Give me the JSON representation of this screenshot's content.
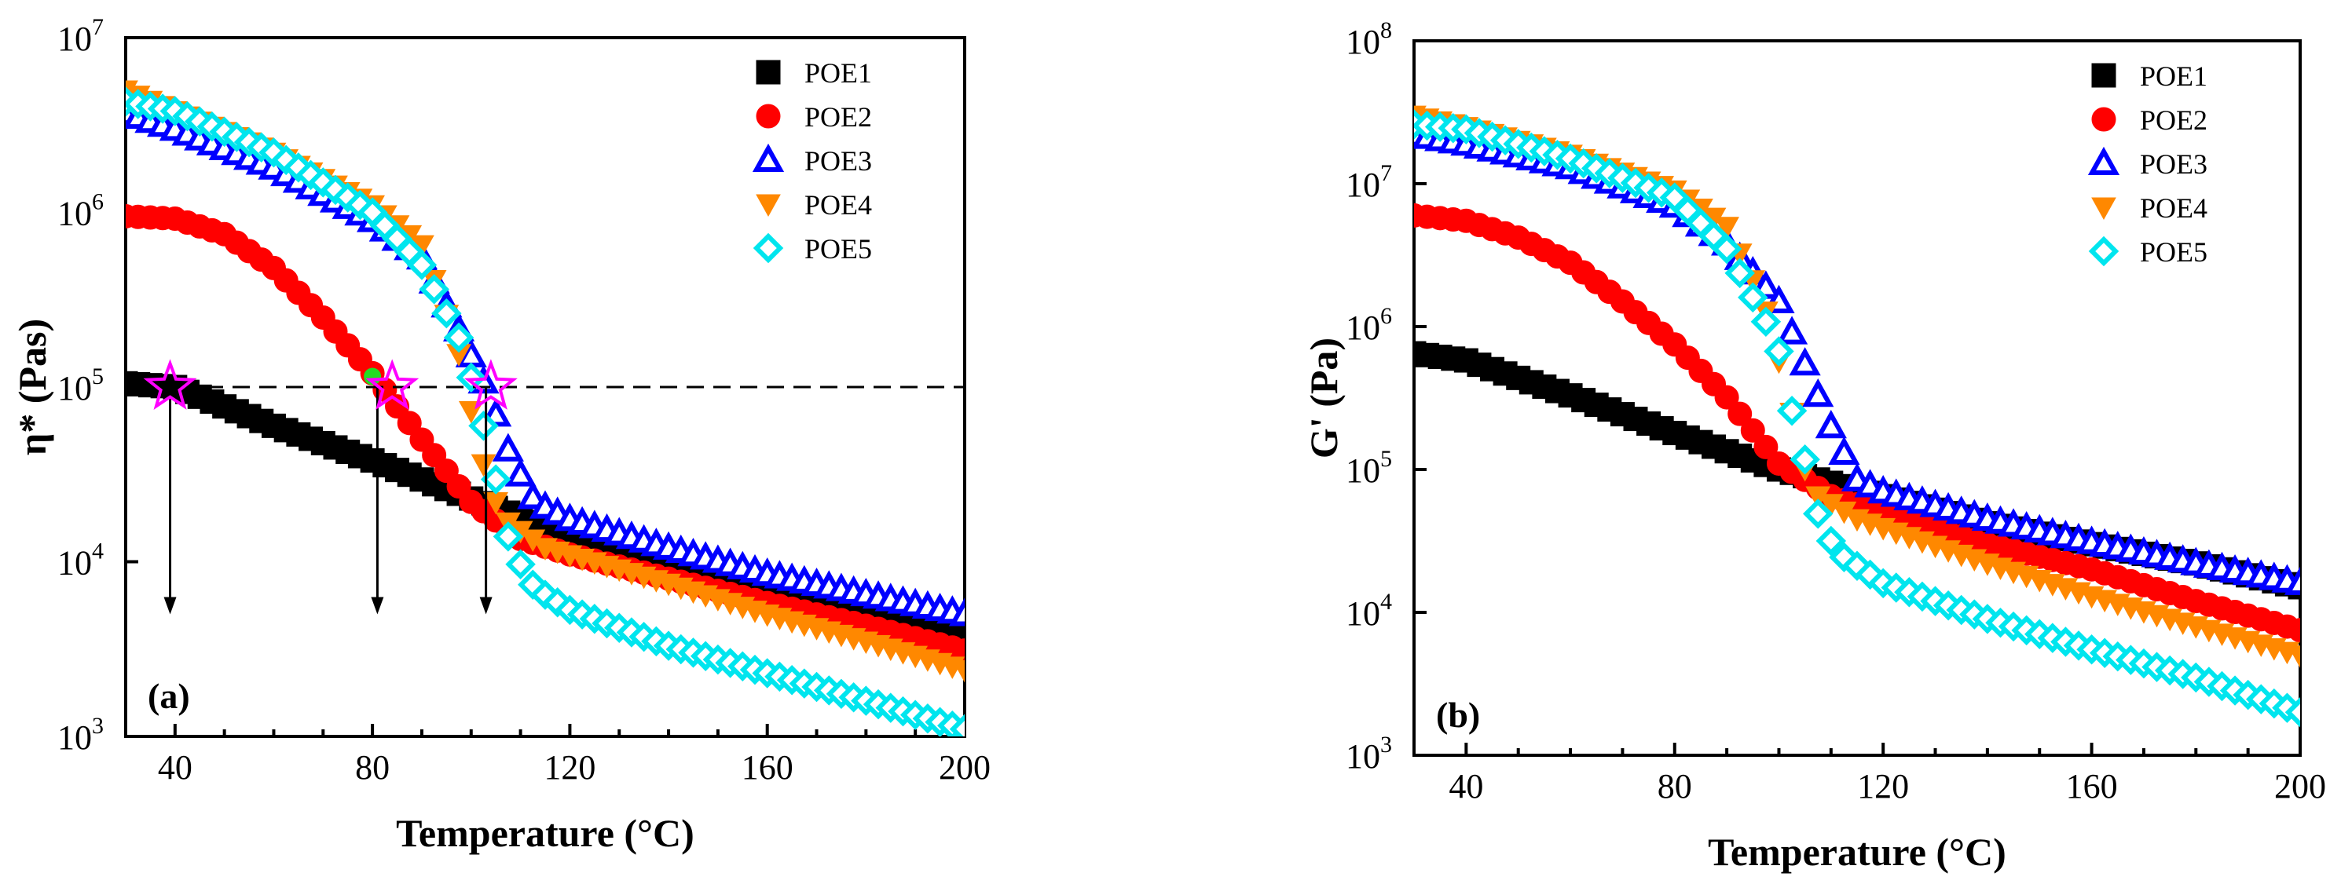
{
  "chart_data": [
    {
      "type": "scatter",
      "panel_label": "(a)",
      "xlabel": "Temperature (°C)",
      "ylabel": "η* (Pas)",
      "xlim": [
        30,
        200
      ],
      "ylog_exp_range": [
        3,
        7
      ],
      "x_ticks": [
        "40",
        "80",
        "120",
        "160",
        "200"
      ],
      "y_tick_exponents": [
        "3",
        "4",
        "5",
        "6",
        "7"
      ],
      "legend_position": "top-right",
      "reference_line": {
        "y": 100000,
        "style": "dashed"
      },
      "annotations": {
        "arrows_from_y": 100000,
        "arrows_to_y": 5000,
        "arrow_x": [
          39,
          81,
          103
        ],
        "stars": [
          [
            39,
            100000
          ],
          [
            84,
            100000
          ],
          [
            104,
            100000
          ]
        ],
        "green_dot": [
          80,
          115000
        ]
      },
      "series": [
        {
          "name": "POE1",
          "marker": "square",
          "color": "#000000",
          "filled": true,
          "points": [
            [
              30,
              105000
            ],
            [
              40,
              100000
            ],
            [
              60,
              60000
            ],
            [
              80,
              38000
            ],
            [
              100,
              23000
            ],
            [
              120,
              14000
            ],
            [
              140,
              10500
            ],
            [
              160,
              7500
            ],
            [
              180,
              5600
            ],
            [
              200,
              4100
            ]
          ]
        },
        {
          "name": "POE2",
          "marker": "circle",
          "color": "#ff0000",
          "filled": true,
          "points": [
            [
              30,
              950000
            ],
            [
              40,
              920000
            ],
            [
              50,
              750000
            ],
            [
              60,
              480000
            ],
            [
              70,
              250000
            ],
            [
              80,
              120000
            ],
            [
              90,
              50000
            ],
            [
              100,
              22000
            ],
            [
              110,
              13500
            ],
            [
              120,
              11000
            ],
            [
              140,
              8000
            ],
            [
              160,
              5800
            ],
            [
              180,
              4300
            ],
            [
              200,
              3100
            ]
          ]
        },
        {
          "name": "POE3",
          "marker": "triangle-up",
          "color": "#0000ff",
          "filled": false,
          "points": [
            [
              30,
              3700000
            ],
            [
              40,
              3000000
            ],
            [
              60,
              1800000
            ],
            [
              80,
              900000
            ],
            [
              90,
              550000
            ],
            [
              98,
              200000
            ],
            [
              103,
              100000
            ],
            [
              108,
              40000
            ],
            [
              113,
              22000
            ],
            [
              120,
              17500
            ],
            [
              140,
              12000
            ],
            [
              160,
              8500
            ],
            [
              180,
              6500
            ],
            [
              200,
              5000
            ]
          ]
        },
        {
          "name": "POE4",
          "marker": "triangle-down",
          "color": "#ff8800",
          "filled": true,
          "points": [
            [
              30,
              5000000
            ],
            [
              40,
              3800000
            ],
            [
              60,
              2200000
            ],
            [
              80,
              1100000
            ],
            [
              90,
              650000
            ],
            [
              97,
              180000
            ],
            [
              102,
              40000
            ],
            [
              106,
              18000
            ],
            [
              115,
              12000
            ],
            [
              140,
              7500
            ],
            [
              160,
              5000
            ],
            [
              180,
              3500
            ],
            [
              200,
              2400
            ]
          ]
        },
        {
          "name": "POE5",
          "marker": "diamond",
          "color": "#00e5ee",
          "filled": false,
          "points": [
            [
              30,
              4300000
            ],
            [
              40,
              3800000
            ],
            [
              60,
              2200000
            ],
            [
              80,
              1000000
            ],
            [
              90,
              500000
            ],
            [
              98,
              180000
            ],
            [
              101,
              90000
            ],
            [
              104,
              40000
            ],
            [
              108,
              12000
            ],
            [
              113,
              7000
            ],
            [
              120,
              5300
            ],
            [
              140,
              3300
            ],
            [
              160,
              2300
            ],
            [
              180,
              1600
            ],
            [
              200,
              1100
            ]
          ]
        }
      ]
    },
    {
      "type": "scatter",
      "panel_label": "(b)",
      "xlabel": "Temperature (°C)",
      "ylabel": "G' (Pa)",
      "xlim": [
        30,
        200
      ],
      "ylog_exp_range": [
        3,
        8
      ],
      "x_ticks": [
        "40",
        "80",
        "120",
        "160",
        "200"
      ],
      "y_tick_exponents": [
        "3",
        "4",
        "5",
        "6",
        "7",
        "8"
      ],
      "legend_position": "top-right",
      "series": [
        {
          "name": "POE1",
          "marker": "square",
          "color": "#000000",
          "filled": true,
          "points": [
            [
              30,
              650000
            ],
            [
              40,
              580000
            ],
            [
              60,
              330000
            ],
            [
              80,
              180000
            ],
            [
              100,
              100000
            ],
            [
              120,
              65000
            ],
            [
              140,
              42000
            ],
            [
              160,
              30000
            ],
            [
              180,
              22000
            ],
            [
              200,
              15000
            ]
          ]
        },
        {
          "name": "POE2",
          "marker": "circle",
          "color": "#ff0000",
          "filled": true,
          "points": [
            [
              30,
              6000000
            ],
            [
              40,
              5500000
            ],
            [
              50,
              4200000
            ],
            [
              60,
              2800000
            ],
            [
              70,
              1500000
            ],
            [
              80,
              750000
            ],
            [
              90,
              320000
            ],
            [
              100,
              110000
            ],
            [
              110,
              65000
            ],
            [
              120,
              50000
            ],
            [
              140,
              30000
            ],
            [
              160,
              20000
            ],
            [
              180,
              12000
            ],
            [
              200,
              7500
            ]
          ]
        },
        {
          "name": "POE3",
          "marker": "triangle-up",
          "color": "#0000ff",
          "filled": false,
          "points": [
            [
              30,
              22000000
            ],
            [
              40,
              19000000
            ],
            [
              60,
              13000000
            ],
            [
              80,
              7000000
            ],
            [
              90,
              3800000
            ],
            [
              100,
              1500000
            ],
            [
              105,
              550000
            ],
            [
              110,
              200000
            ],
            [
              115,
              85000
            ],
            [
              120,
              70000
            ],
            [
              140,
              45000
            ],
            [
              160,
              31000
            ],
            [
              180,
              22000
            ],
            [
              200,
              16000
            ]
          ]
        },
        {
          "name": "POE4",
          "marker": "triangle-down",
          "color": "#ff8800",
          "filled": true,
          "points": [
            [
              30,
              30000000
            ],
            [
              40,
              25000000
            ],
            [
              60,
              16000000
            ],
            [
              80,
              9000000
            ],
            [
              90,
              5000000
            ],
            [
              97,
              1500000
            ],
            [
              102,
              300000
            ],
            [
              106,
              70000
            ],
            [
              115,
              45000
            ],
            [
              140,
              22000
            ],
            [
              160,
              13000
            ],
            [
              180,
              8000
            ],
            [
              200,
              5000
            ]
          ]
        },
        {
          "name": "POE5",
          "marker": "diamond",
          "color": "#00e5ee",
          "filled": false,
          "points": [
            [
              30,
              26000000
            ],
            [
              40,
              24000000
            ],
            [
              60,
              15000000
            ],
            [
              80,
              8000000
            ],
            [
              90,
              3500000
            ],
            [
              98,
              1000000
            ],
            [
              101,
              550000
            ],
            [
              103,
              200000
            ],
            [
              106,
              90000
            ],
            [
              108,
              40000
            ],
            [
              112,
              25000
            ],
            [
              120,
              16000
            ],
            [
              140,
              9000
            ],
            [
              160,
              5500
            ],
            [
              180,
              3500
            ],
            [
              200,
              2000
            ]
          ]
        }
      ]
    }
  ]
}
